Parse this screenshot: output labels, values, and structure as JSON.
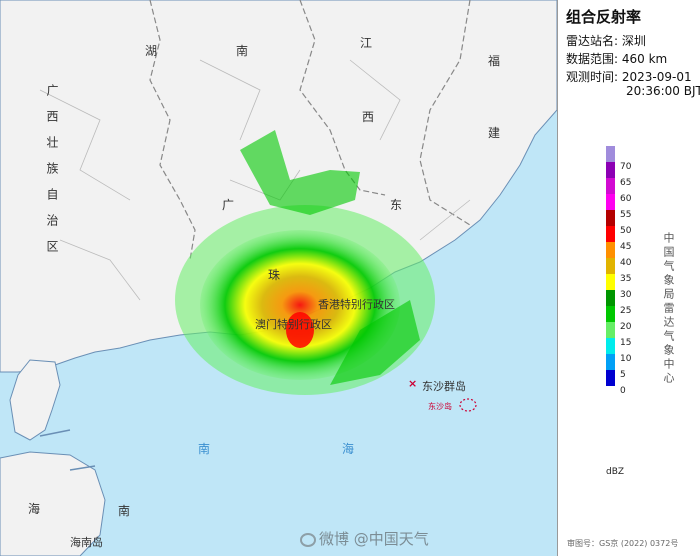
{
  "panel": {
    "title": "组合反射率",
    "station_label": "雷达站名: 深圳",
    "range_label": "数据范围: 460 km",
    "time_label": "观测时间: 2023-09-01",
    "time_line2": "20:36:00 BJT"
  },
  "legend": {
    "unit": "dBZ",
    "vertical_label": "中国气象局雷达气象中心",
    "levels": [
      {
        "value": "70",
        "color": "#a08cdc"
      },
      {
        "value": "65",
        "color": "#8c00b4"
      },
      {
        "value": "60",
        "color": "#d20ad2"
      },
      {
        "value": "55",
        "color": "#ff00f0"
      },
      {
        "value": "50",
        "color": "#b40000"
      },
      {
        "value": "45",
        "color": "#ff0000"
      },
      {
        "value": "40",
        "color": "#ff9000"
      },
      {
        "value": "35",
        "color": "#e1b400"
      },
      {
        "value": "30",
        "color": "#ffff00"
      },
      {
        "value": "25",
        "color": "#009600"
      },
      {
        "value": "20",
        "color": "#00c800"
      },
      {
        "value": "15",
        "color": "#66ee66"
      },
      {
        "value": "10",
        "color": "#00ecec"
      },
      {
        "value": "5",
        "color": "#01a0f6"
      },
      {
        "value": "0",
        "color": "#0000d0"
      }
    ]
  },
  "map_labels": {
    "hunan_1": "湖",
    "hunan_2": "南",
    "jiangxi_1": "江",
    "jiangxi_2": "西",
    "fujian": "福",
    "fujian_2": "建",
    "guangdong_1": "广",
    "guangdong_2": "东",
    "guangxi": "广西壮族自治区",
    "shenzhen_area": "珠",
    "hk": "香港特别行政区",
    "macau": "澳门特别行政区",
    "dongsha": "东沙群岛",
    "dongsha_small": "东沙岛",
    "south_sea_1": "南",
    "south_sea_2": "海",
    "hainan_1": "海",
    "hainan_2": "南",
    "hainan_island": "海南岛"
  },
  "approval": "审图号：GS京 (2022) 0372号",
  "watermark": "微博 @中国天气"
}
